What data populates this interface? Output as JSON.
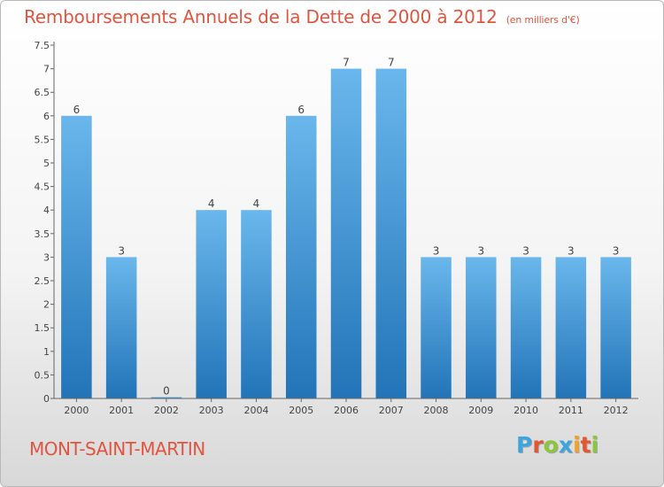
{
  "title": "Remboursements Annuels de la Dette de 2000 à 2012",
  "unit": "(en milliers d'€)",
  "commune": "MONT-SAINT-MARTIN",
  "logo": {
    "text": "Proxiti",
    "colors": [
      "#3aa6dd",
      "#e2572f",
      "#8cc63f",
      "#3aa6dd",
      "#f2a12a",
      "#e2572f",
      "#8cc63f"
    ]
  },
  "colors": {
    "bar_light": "#6ab7ec",
    "bar_dark": "#2274b8",
    "text": "#e0553f",
    "axis": "#555555"
  },
  "chart_data": {
    "type": "bar",
    "categories": [
      "2000",
      "2001",
      "2002",
      "2003",
      "2004",
      "2005",
      "2006",
      "2007",
      "2008",
      "2009",
      "2010",
      "2011",
      "2012"
    ],
    "values": [
      6,
      3,
      0,
      4,
      4,
      6,
      7,
      7,
      3,
      3,
      3,
      3,
      3
    ],
    "data_labels": [
      "6",
      "3",
      "0",
      "4",
      "4",
      "6",
      "7",
      "7",
      "3",
      "3",
      "3",
      "3",
      "3"
    ],
    "yticks": [
      "0",
      "0.5",
      "1",
      "1.5",
      "2",
      "2.5",
      "3",
      "3.5",
      "4",
      "4.5",
      "5",
      "5.5",
      "6",
      "6.5",
      "7",
      "7.5"
    ],
    "ylim": [
      0,
      7.5
    ],
    "grid": false
  }
}
